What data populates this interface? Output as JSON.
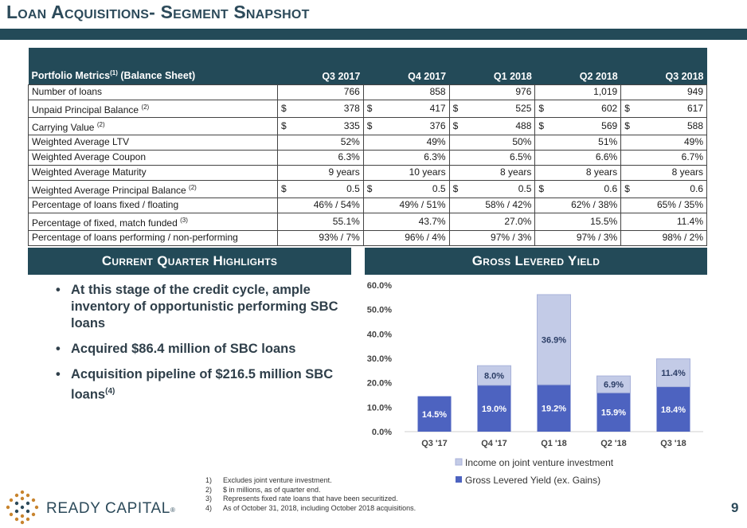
{
  "title": "Loan Acquisitions- Segment Snapshot",
  "table": {
    "header": {
      "label": "Portfolio Metrics",
      "label_sup": "(1)",
      "label_suffix": " (Balance Sheet)",
      "columns": [
        "Q3 2017",
        "Q4 2017",
        "Q1 2018",
        "Q2 2018",
        "Q3 2018"
      ]
    },
    "rows": [
      {
        "label": "Number of loans",
        "sup": "",
        "currency": false,
        "values": [
          "766",
          "858",
          "976",
          "1,019",
          "949"
        ]
      },
      {
        "label": "Unpaid Principal Balance",
        "sup": "(2)",
        "currency": true,
        "values": [
          "378",
          "417",
          "525",
          "602",
          "617"
        ]
      },
      {
        "label": "Carrying Value",
        "sup": "(2)",
        "currency": true,
        "values": [
          "335",
          "376",
          "488",
          "569",
          "588"
        ]
      },
      {
        "label": "Weighted Average LTV",
        "sup": "",
        "currency": false,
        "values": [
          "52%",
          "49%",
          "50%",
          "51%",
          "49%"
        ]
      },
      {
        "label": "Weighted Average Coupon",
        "sup": "",
        "currency": false,
        "values": [
          "6.3%",
          "6.3%",
          "6.5%",
          "6.6%",
          "6.7%"
        ]
      },
      {
        "label": "Weighted Average Maturity",
        "sup": "",
        "currency": false,
        "values": [
          "9 years",
          "10 years",
          "8 years",
          "8 years",
          "8 years"
        ]
      },
      {
        "label": "Weighted Average Principal Balance",
        "sup": "(2)",
        "currency": true,
        "values": [
          "0.5",
          "0.5",
          "0.5",
          "0.6",
          "0.6"
        ]
      },
      {
        "label": "Percentage of loans fixed / floating",
        "sup": "",
        "currency": false,
        "values": [
          "46% / 54%",
          "49% / 51%",
          "58% / 42%",
          "62% / 38%",
          "65% / 35%"
        ]
      },
      {
        "label": "Percentage of fixed, match funded",
        "sup": "(3)",
        "currency": false,
        "values": [
          "55.1%",
          "43.7%",
          "27.0%",
          "15.5%",
          "11.4%"
        ]
      },
      {
        "label": "Percentage of loans performing / non-performing",
        "sup": "",
        "currency": false,
        "values": [
          "93% / 7%",
          "96% / 4%",
          "97% / 3%",
          "97% / 3%",
          "98% / 2%"
        ]
      }
    ],
    "currency_symbol": "$"
  },
  "highlights": {
    "header": "Current Quarter Highlights",
    "bullet_glyph": "•",
    "bullets": [
      {
        "text": "At this stage of the credit cycle, ample inventory of opportunistic performing SBC loans",
        "sup": ""
      },
      {
        "text": "Acquired $86.4 million of SBC loans",
        "sup": ""
      },
      {
        "text": "Acquisition pipeline of $216.5 million SBC loans",
        "sup": "(4)"
      }
    ]
  },
  "yield_header": "Gross Levered Yield",
  "chart_data": {
    "type": "bar",
    "stacked": true,
    "categories": [
      "Q3 '17",
      "Q4 '17",
      "Q1 '18",
      "Q2 '18",
      "Q3 '18"
    ],
    "series": [
      {
        "name": "Gross Levered Yield (ex. Gains)",
        "values": [
          14.5,
          19.0,
          19.2,
          15.9,
          18.4
        ],
        "labels": [
          "14.5%",
          "19.0%",
          "19.2%",
          "15.9%",
          "18.4%"
        ],
        "color": "#4d63c0"
      },
      {
        "name": "Income on joint venture investment",
        "values": [
          0,
          8.0,
          36.9,
          6.9,
          11.4
        ],
        "labels": [
          "",
          "8.0%",
          "36.9%",
          "6.9%",
          "11.4%"
        ],
        "color": "#c3cbe7"
      }
    ],
    "ylim": [
      0,
      60
    ],
    "yticks": [
      "0.0%",
      "10.0%",
      "20.0%",
      "30.0%",
      "40.0%",
      "50.0%",
      "60.0%"
    ],
    "grid": false,
    "legend": "bottom"
  },
  "footnotes": [
    {
      "num": "1)",
      "text": "Excludes joint venture investment."
    },
    {
      "num": "2)",
      "text": "$ in millions, as of quarter end."
    },
    {
      "num": "3)",
      "text": "Represents fixed rate loans that have been securitized."
    },
    {
      "num": "4)",
      "text": "As of October 31, 2018, including October 2018 acquisitions."
    }
  ],
  "logo": {
    "name": "READY CAPITAL",
    "mark": "®"
  },
  "page_number": "9",
  "colors": {
    "navy": "#234a58",
    "title": "#2c4a5a",
    "bar_dark": "#4d63c0",
    "bar_light": "#c3cbe7"
  }
}
